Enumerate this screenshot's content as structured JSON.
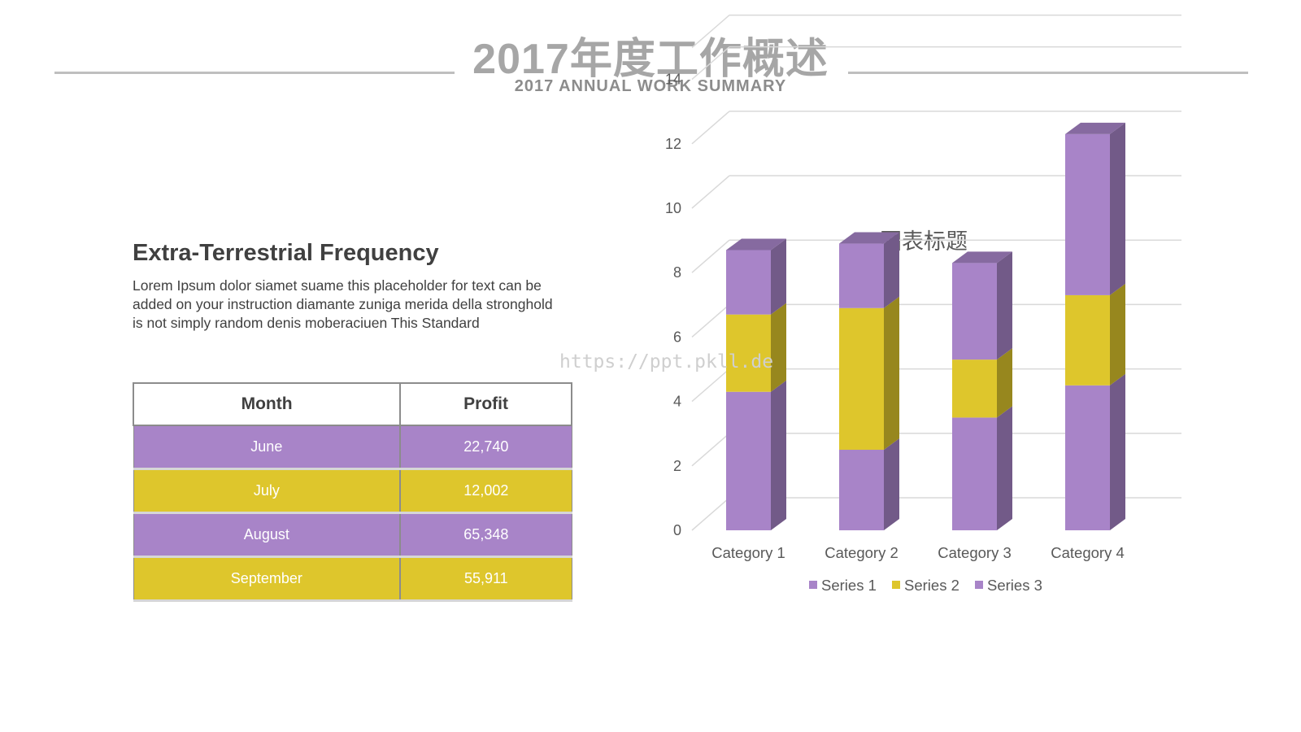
{
  "header": {
    "title": "2017年度工作概述",
    "subtitle": "2017 ANNUAL WORK SUMMARY"
  },
  "section": {
    "heading": "Extra-Terrestrial Frequency",
    "body": "Lorem Ipsum dolor siamet suame this placeholder for text can be added on your instruction diamante zuniga merida della stronghold is not simply random denis moberaciuen This Standard"
  },
  "watermark": "https://ppt.pkll.de",
  "table": {
    "headers": [
      "Month",
      "Profit"
    ],
    "rows": [
      {
        "month": "June",
        "profit": "22,740",
        "color": "#a884c8"
      },
      {
        "month": "July",
        "profit": "12,002",
        "color": "#dec62c"
      },
      {
        "month": "August",
        "profit": "65,348",
        "color": "#a884c8"
      },
      {
        "month": "September",
        "profit": "55,911",
        "color": "#dec62c"
      }
    ]
  },
  "chart_data": {
    "type": "bar",
    "stacked": true,
    "three_d": true,
    "title": "图表标题",
    "categories": [
      "Category 1",
      "Category 2",
      "Category 3",
      "Category 4"
    ],
    "series": [
      {
        "name": "Series 1",
        "values": [
          4.3,
          2.5,
          3.5,
          4.5
        ],
        "color": "#a884c8"
      },
      {
        "name": "Series 2",
        "values": [
          2.4,
          4.4,
          1.8,
          2.8
        ],
        "color": "#dec62c"
      },
      {
        "name": "Series 3",
        "values": [
          2,
          2,
          3,
          5
        ],
        "color": "#a884c8"
      }
    ],
    "ylim": [
      0,
      14
    ],
    "yticks": [
      0,
      2,
      4,
      6,
      8,
      10,
      12,
      14
    ],
    "grid": true,
    "legend": "bottom"
  }
}
